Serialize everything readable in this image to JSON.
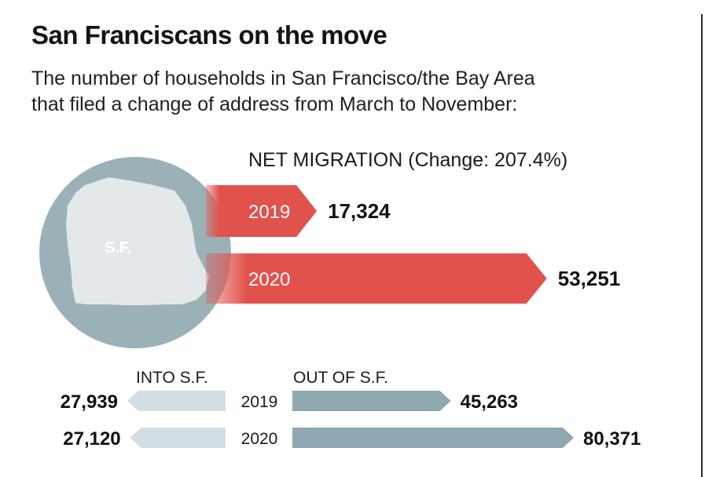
{
  "header": {
    "title": "San Franciscans on the move",
    "subtitle_line1": "The number of households in San Francisco/the Bay Area",
    "subtitle_line2": "that filed a change of address from March to November:"
  },
  "colors": {
    "net_arrow": "#e2524c",
    "into_arrow": "#d3dee2",
    "out_arrow": "#8ea8b2",
    "circle": "#9bb1b8",
    "map": "#e3e9eb"
  },
  "map_label": "S.F.",
  "chart_data": [
    {
      "type": "bar",
      "orientation": "horizontal",
      "title": "NET MIGRATION (Change: 207.4%)",
      "categories": [
        "2019",
        "2020"
      ],
      "values": [
        17324,
        53251
      ],
      "value_labels": [
        "17,324",
        "53,251"
      ],
      "xlim": [
        0,
        60000
      ]
    },
    {
      "type": "bar",
      "orientation": "horizontal-diverging",
      "categories": [
        "2019",
        "2020"
      ],
      "series": [
        {
          "name": "INTO S.F.",
          "values": [
            27939,
            27120
          ],
          "value_labels": [
            "27,939",
            "27,120"
          ]
        },
        {
          "name": "OUT OF S.F.",
          "values": [
            45263,
            80371
          ],
          "value_labels": [
            "45,263",
            "80,371"
          ]
        }
      ],
      "xlim": [
        0,
        90000
      ]
    }
  ]
}
